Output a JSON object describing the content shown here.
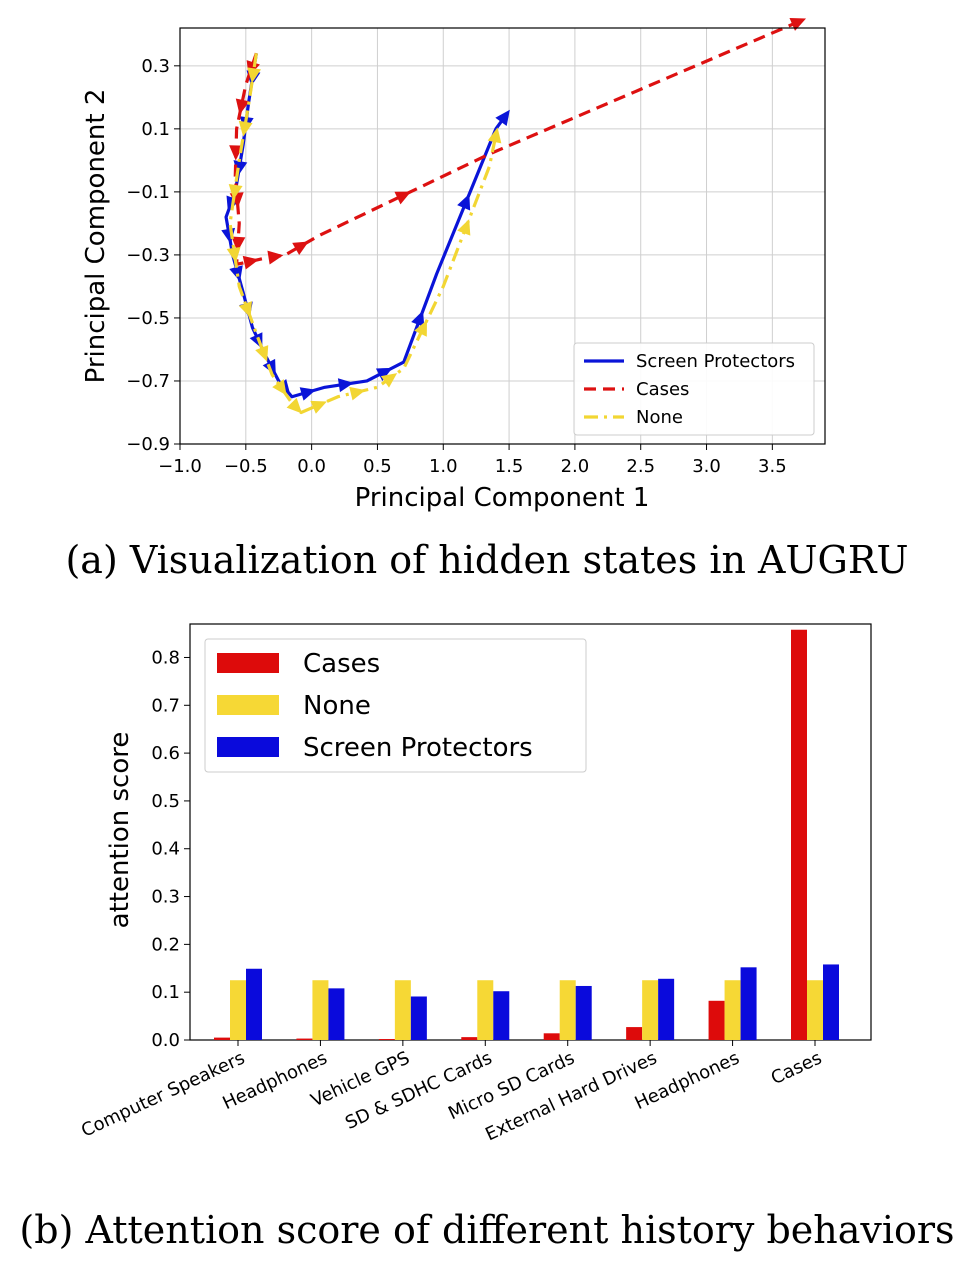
{
  "captions": {
    "a": "(a) Visualization of hidden states in AUGRU",
    "b": "(b) Attention score of different history behaviors"
  },
  "chart_data": [
    {
      "type": "line",
      "xlabel": "Principal Component 1",
      "ylabel": "Principal Component 2",
      "xlim": [
        -1.0,
        3.9
      ],
      "ylim": [
        -0.9,
        0.42
      ],
      "xticks": [
        "−1.0",
        "−0.5",
        "0.0",
        "0.5",
        "1.0",
        "1.5",
        "2.0",
        "2.5",
        "3.0",
        "3.5"
      ],
      "yticks": [
        "−0.9",
        "−0.7",
        "−0.5",
        "−0.3",
        "−0.1",
        "0.1",
        "0.3"
      ],
      "grid": true,
      "legend": "bottom-right",
      "series": [
        {
          "name": "Screen Protectors",
          "color": "#0a14d8",
          "style": "solid",
          "points": [
            [
              -0.42,
              0.34
            ],
            [
              -0.48,
              0.18
            ],
            [
              -0.52,
              0.05
            ],
            [
              -0.58,
              -0.1
            ],
            [
              -0.65,
              -0.18
            ],
            [
              -0.6,
              -0.3
            ],
            [
              -0.52,
              -0.42
            ],
            [
              -0.45,
              -0.53
            ],
            [
              -0.35,
              -0.62
            ],
            [
              -0.25,
              -0.7
            ],
            [
              -0.15,
              -0.75
            ],
            [
              0.1,
              -0.72
            ],
            [
              0.42,
              -0.7
            ],
            [
              0.7,
              -0.64
            ],
            [
              0.95,
              -0.36
            ],
            [
              1.4,
              0.1
            ],
            [
              1.47,
              0.14
            ]
          ]
        },
        {
          "name": "Cases",
          "color": "#dd1111",
          "style": "dashed",
          "points": [
            [
              -0.42,
              0.34
            ],
            [
              -0.5,
              0.24
            ],
            [
              -0.57,
              0.1
            ],
            [
              -0.58,
              -0.05
            ],
            [
              -0.55,
              -0.2
            ],
            [
              -0.57,
              -0.33
            ],
            [
              -0.35,
              -0.31
            ],
            [
              -0.2,
              -0.3
            ],
            [
              0.05,
              -0.24
            ],
            [
              1.35,
              0.02
            ],
            [
              3.7,
              0.44
            ]
          ]
        },
        {
          "name": "None",
          "color": "#f2d633",
          "style": "dashdot",
          "points": [
            [
              -0.42,
              0.34
            ],
            [
              -0.47,
              0.2
            ],
            [
              -0.55,
              0.0
            ],
            [
              -0.62,
              -0.2
            ],
            [
              -0.55,
              -0.4
            ],
            [
              -0.42,
              -0.55
            ],
            [
              -0.3,
              -0.68
            ],
            [
              -0.15,
              -0.77
            ],
            [
              -0.08,
              -0.8
            ],
            [
              0.2,
              -0.75
            ],
            [
              0.5,
              -0.72
            ],
            [
              0.7,
              -0.66
            ],
            [
              1.0,
              -0.4
            ],
            [
              1.35,
              -0.02
            ],
            [
              1.4,
              0.08
            ]
          ]
        }
      ]
    },
    {
      "type": "bar",
      "xlabel": "",
      "ylabel": "attention score",
      "ylim": [
        0,
        0.87
      ],
      "yticks": [
        "0.0",
        "0.1",
        "0.2",
        "0.3",
        "0.4",
        "0.5",
        "0.6",
        "0.7",
        "0.8"
      ],
      "grid": false,
      "legend": "top-left",
      "categories": [
        "Computer Speakers",
        "Headphones",
        "Vehicle GPS",
        "SD & SDHC Cards",
        "Micro SD Cards",
        "External Hard Drives",
        "Headphones",
        "Cases"
      ],
      "series": [
        {
          "name": "Cases",
          "color": "#dd0b0b",
          "values": [
            0.005,
            0.003,
            0.002,
            0.006,
            0.014,
            0.027,
            0.082,
            0.858
          ]
        },
        {
          "name": "None",
          "color": "#f6d835",
          "values": [
            0.125,
            0.125,
            0.125,
            0.125,
            0.125,
            0.125,
            0.125,
            0.125
          ]
        },
        {
          "name": "Screen Protectors",
          "color": "#0a0adc",
          "values": [
            0.149,
            0.108,
            0.091,
            0.102,
            0.113,
            0.128,
            0.152,
            0.158
          ]
        }
      ],
      "legend_order": [
        "Cases",
        "None",
        "Screen Protectors"
      ]
    }
  ]
}
